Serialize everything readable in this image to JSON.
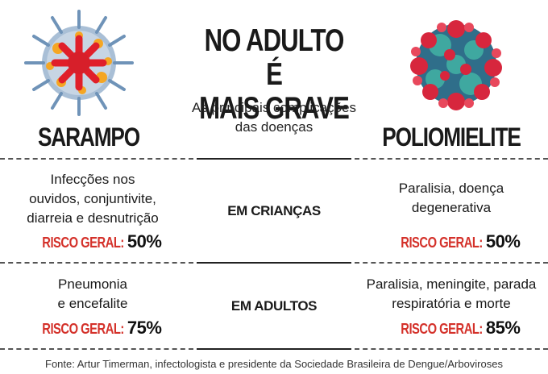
{
  "header": {
    "title_line1": "NO ADULTO É",
    "title_line2": "MAIS GRAVE",
    "subtitle_line1": "As principais complicações",
    "subtitle_line2": "das doenças"
  },
  "diseases": {
    "left": {
      "name": "SARAMPO",
      "illustration": "measles-virus-icon"
    },
    "right": {
      "name": "POLIOMIELITE",
      "illustration": "polio-virus-icon"
    }
  },
  "rows": [
    {
      "stage": "EM CRIANÇAS",
      "left": {
        "lines": [
          "Infecções nos",
          "ouvidos, conjuntivite,",
          "diarreia e desnutrição"
        ],
        "risk_label": "RISCO GERAL:",
        "risk_value": "50%"
      },
      "right": {
        "lines": [
          "Paralisia, doença",
          "degenerativa"
        ],
        "risk_label": "RISCO GERAL:",
        "risk_value": "50%"
      }
    },
    {
      "stage": "EM ADULTOS",
      "left": {
        "lines": [
          "Pneumonia",
          "e encefalite"
        ],
        "risk_label": "RISCO GERAL:",
        "risk_value": "75%"
      },
      "right": {
        "lines": [
          "Paralisia, meningite, parada",
          "respiratória e morte"
        ],
        "risk_label": "RISCO GERAL:",
        "risk_value": "85%"
      }
    }
  ],
  "source": "Fonte: Artur Timerman, infectologista e presidente da Sociedade Brasileira de Dengue/Arboviroses",
  "colors": {
    "risk_label": "#d4312a",
    "text": "#1a1a1a",
    "separator": "#555555"
  }
}
